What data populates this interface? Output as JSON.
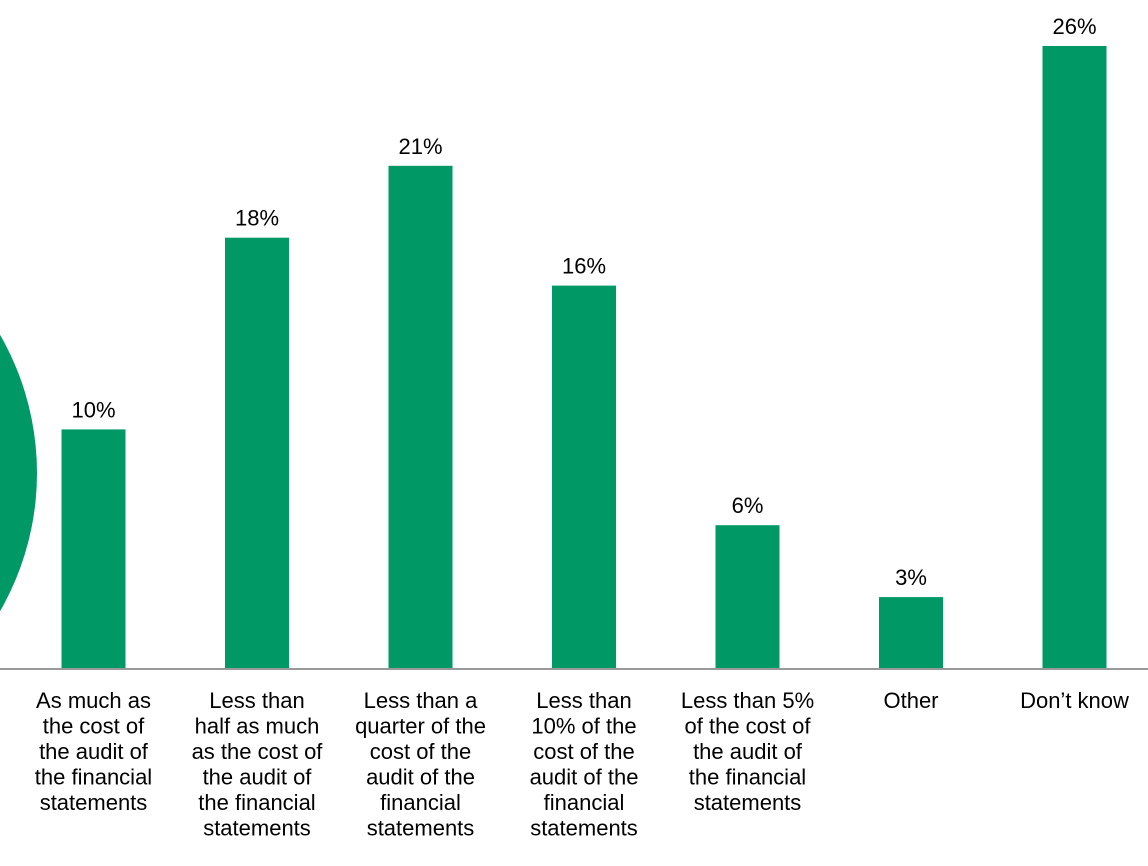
{
  "chart_data": {
    "type": "bar",
    "title": "",
    "xlabel": "",
    "ylabel": "",
    "ylim": [
      0,
      26
    ],
    "grid": false,
    "legend": "none",
    "categories": [
      "As much as the cost of the audit of the financial statements",
      "Less than half as much as the cost of the audit of the financial statements",
      "Less than a quarter of the cost of the audit of the financial statements",
      "Less than 10% of the cost of the audit of the financial statements",
      "Less than 5% of the cost of the audit of the financial statements",
      "Other",
      "Don’t know"
    ],
    "category_lines": [
      [
        "As much as",
        "the cost of",
        "the audit of",
        "the financial",
        "statements"
      ],
      [
        "Less than",
        "half as much",
        "as the cost of",
        "the audit of",
        "the financial",
        "statements"
      ],
      [
        "Less than a",
        "quarter of the",
        "cost of the",
        "audit of the",
        "financial",
        "statements"
      ],
      [
        "Less than",
        "10% of the",
        "cost of the",
        "audit of the",
        "financial",
        "statements"
      ],
      [
        "Less than 5%",
        "of the cost of",
        "the audit of",
        "the financial",
        "statements"
      ],
      [
        "Other"
      ],
      [
        "Don’t know"
      ]
    ],
    "values": [
      10,
      18,
      21,
      16,
      6,
      3,
      26
    ],
    "data_labels": [
      "10%",
      "18%",
      "21%",
      "16%",
      "6%",
      "3%",
      "26%"
    ],
    "colors": {
      "bar": "#009966",
      "axis": "#999999",
      "decor_circle": "#009966"
    }
  }
}
